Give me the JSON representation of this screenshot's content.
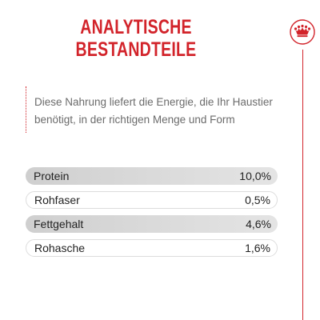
{
  "title": {
    "line1": "ANALYTISCHE",
    "line2": "BESTANDTEILE"
  },
  "logo": {
    "icon": "crown-badge-icon",
    "color": "#d2232a"
  },
  "description": "Diese Nahrung liefert die Energie, die Ihr Haustier benötigt, in der richtigen Menge und Form",
  "nutrients": [
    {
      "label": "Protein",
      "value": "10,0%"
    },
    {
      "label": "Rohfaser",
      "value": "0,5%"
    },
    {
      "label": "Fettgehalt",
      "value": "4,6%"
    },
    {
      "label": "Rohasche",
      "value": "1,6%"
    }
  ],
  "colors": {
    "accent": "#d2232a",
    "text": "#222222",
    "muted": "#6b6b6b",
    "row_shade": "#d6d6d6"
  }
}
